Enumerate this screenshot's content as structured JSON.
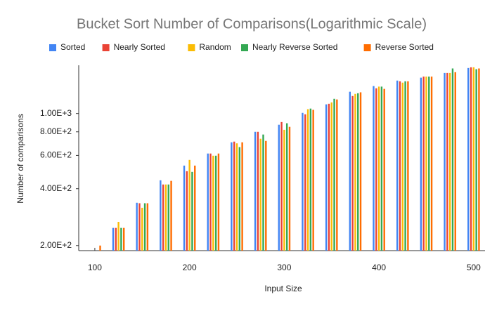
{
  "chart_data": {
    "type": "bar",
    "title": "Bucket Sort Number of Comparisons(Logarithmic Scale)",
    "x_label": "Input Size",
    "y_label": "Number of comparisons",
    "x": [
      100,
      125,
      150,
      175,
      200,
      225,
      250,
      275,
      300,
      325,
      350,
      375,
      400,
      425,
      450,
      475,
      500
    ],
    "series": [
      {
        "name": "Sorted",
        "color": "#4285f4",
        "values": [
          null,
          248,
          337,
          443,
          530,
          614,
          704,
          800,
          872,
          1008,
          1118,
          1304,
          1397,
          1494,
          1548,
          1640,
          1742
        ]
      },
      {
        "name": "Nearly Sorted",
        "color": "#ea4335",
        "values": [
          null,
          248,
          335,
          421,
          495,
          614,
          710,
          800,
          901,
          990,
          1126,
          1238,
          1360,
          1481,
          1568,
          1640,
          1756
        ]
      },
      {
        "name": "Random",
        "color": "#fbbc04",
        "values": [
          null,
          267,
          317,
          421,
          568,
          598,
          695,
          735,
          820,
          1054,
          1145,
          1270,
          1388,
          1457,
          1568,
          1640,
          1756
        ]
      },
      {
        "name": "Nearly Reverse Sorted",
        "color": "#34a853",
        "values": [
          null,
          248,
          335,
          421,
          491,
          598,
          664,
          774,
          888,
          1062,
          1196,
          1280,
          1388,
          1481,
          1568,
          1732,
          1716
        ]
      },
      {
        "name": "Reverse Sorted",
        "color": "#ff6d01",
        "values": [
          200,
          248,
          335,
          440,
          530,
          614,
          704,
          716,
          850,
          1046,
          1187,
          1295,
          1350,
          1481,
          1568,
          1655,
          1732
        ]
      }
    ],
    "xlim": [
      83,
      512
    ],
    "xticks": [
      100,
      200,
      300,
      400,
      500
    ],
    "ylim": [
      188,
      1800
    ],
    "log_y": true,
    "yticks": [
      {
        "value": 200,
        "label": "2.00E+2"
      },
      {
        "value": 400,
        "label": "4.00E+2"
      },
      {
        "value": 600,
        "label": "6.00E+2"
      },
      {
        "value": 800,
        "label": "8.00E+2"
      },
      {
        "value": 1000,
        "label": "1.00E+3"
      }
    ],
    "grid": false,
    "legend": "top"
  }
}
